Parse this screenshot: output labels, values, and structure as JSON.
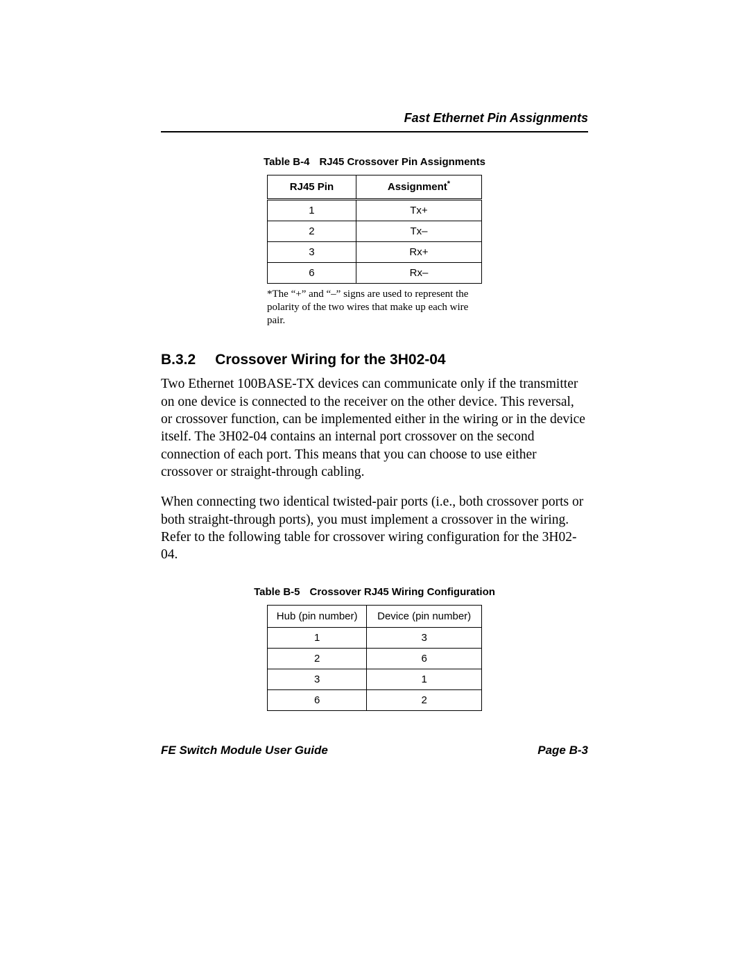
{
  "running_head": "Fast Ethernet Pin Assignments",
  "table1": {
    "caption_label": "Table B-4",
    "caption_title": "RJ45 Crossover Pin Assignments",
    "headers": {
      "col1": "RJ45 Pin",
      "col2": "Assignment",
      "col2_sup": "*"
    },
    "rows": [
      {
        "pin": "1",
        "assign": "Tx+"
      },
      {
        "pin": "2",
        "assign": "Tx–"
      },
      {
        "pin": "3",
        "assign": "Rx+"
      },
      {
        "pin": "6",
        "assign": "Rx–"
      }
    ],
    "footnote": "*The “+” and “–” signs are used to represent the polarity of the two wires that make up each wire pair."
  },
  "section": {
    "number": "B.3.2",
    "title": "Crossover Wiring for the 3H02-04",
    "para1": "Two Ethernet 100BASE-TX devices can communicate only if the transmitter on one device is connected to the receiver on the other device. This reversal, or crossover function, can be implemented either in the wiring or in the device itself. The 3H02-04 contains an internal port crossover on the second connection of each port. This means that you can choose to use either crossover or straight-through cabling.",
    "para2": "When connecting two identical twisted-pair ports (i.e., both crossover ports or both straight-through ports), you must implement a crossover in the wiring. Refer to the following table for crossover wiring configuration for the 3H02-04."
  },
  "table2": {
    "caption_label": "Table B-5",
    "caption_title": "Crossover RJ45 Wiring Configuration",
    "headers": {
      "col1": "Hub (pin number)",
      "col2": "Device (pin number)"
    },
    "rows": [
      {
        "hub": "1",
        "dev": "3"
      },
      {
        "hub": "2",
        "dev": "6"
      },
      {
        "hub": "3",
        "dev": "1"
      },
      {
        "hub": "6",
        "dev": "2"
      }
    ]
  },
  "footer": {
    "left": "FE Switch Module User Guide",
    "right": "Page B-3"
  }
}
